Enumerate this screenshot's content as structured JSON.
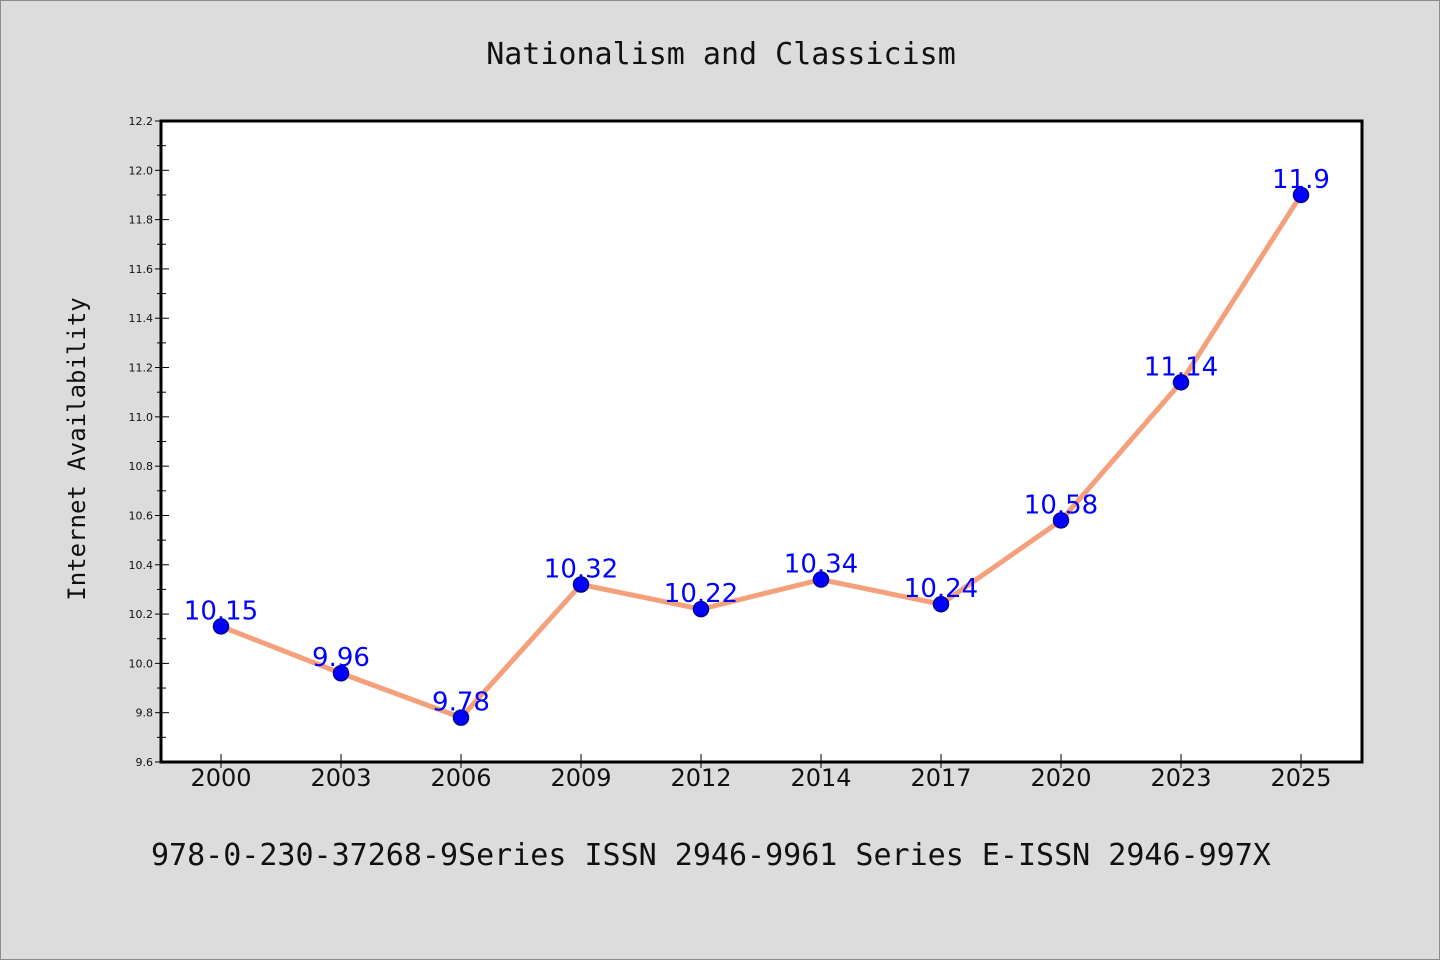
{
  "footer_text": "978-0-230-37268-9Series ISSN 2946-9961 Series E-ISSN 2946-997X",
  "chart_data": {
    "type": "line",
    "title": "Nationalism and Classicism",
    "xlabel": "",
    "ylabel": "Internet Availability",
    "categories": [
      "2000",
      "2003",
      "2006",
      "2009",
      "2012",
      "2014",
      "2017",
      "2020",
      "2023",
      "2025"
    ],
    "values": [
      10.15,
      9.96,
      9.78,
      10.32,
      10.22,
      10.34,
      10.24,
      10.58,
      11.14,
      11.9
    ],
    "data_labels": [
      "10.15",
      "9.96",
      "9.78",
      "10.32",
      "10.22",
      "10.34",
      "10.24",
      "10.58",
      "11.14",
      "11.9"
    ],
    "ylim": [
      9.6,
      12.2
    ],
    "yticks": [
      "9.6",
      "9.8",
      "10.0",
      "10.2",
      "10.4",
      "10.6",
      "10.8",
      "11.0",
      "11.2",
      "11.4",
      "11.6",
      "11.8",
      "12.0",
      "12.2"
    ],
    "grid": false,
    "legend": "none",
    "colors": {
      "line": "#f4a07c",
      "marker_fill": "#0000ff",
      "marker_edge": "#00008b",
      "data_label": "#0000ff",
      "figure_background": "#dcdcdc",
      "plot_background": "#ffffff"
    }
  }
}
